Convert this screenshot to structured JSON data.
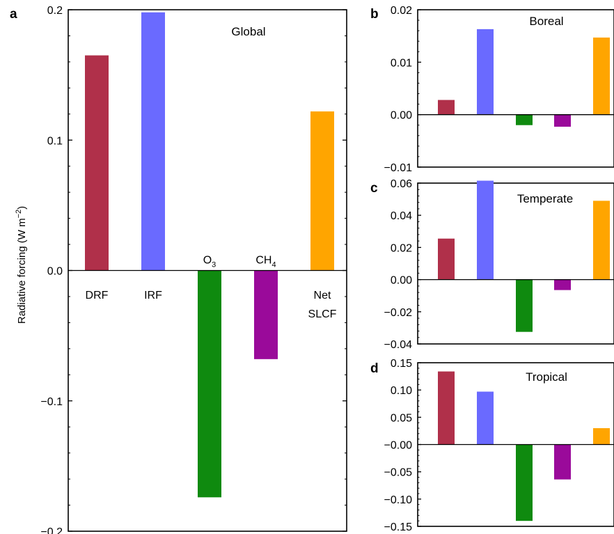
{
  "chart_data": [
    {
      "panel": "a",
      "type": "bar",
      "title": "Global",
      "ylabel": "Radiative forcing (W m−2)",
      "categories": [
        "DRF",
        "IRF",
        "O3",
        "CH4",
        "Net SLCF"
      ],
      "category_labels": [
        {
          "main": "DRF",
          "sub": ""
        },
        {
          "main": "IRF",
          "sub": ""
        },
        {
          "main": "O",
          "sub": "3"
        },
        {
          "main": "CH",
          "sub": "4"
        },
        {
          "main": "Net",
          "sub": "SLCF"
        }
      ],
      "values": [
        0.165,
        0.198,
        -0.174,
        -0.068,
        0.122
      ],
      "colors": [
        "#b0304a",
        "#6a6aff",
        "#0f8a0f",
        "#9a0a9a",
        "#ffa500"
      ],
      "ylim": [
        -0.2,
        0.2
      ],
      "yticks": [
        -0.2,
        -0.1,
        0.0,
        0.1,
        0.2
      ],
      "ytick_labels": [
        "−0.2",
        "−0.1",
        "0.0",
        "0.1",
        "0.2"
      ]
    },
    {
      "panel": "b",
      "type": "bar",
      "title": "Boreal",
      "categories": [
        "DRF",
        "IRF",
        "O3",
        "CH4",
        "Net SLCF"
      ],
      "values": [
        0.0028,
        0.0163,
        -0.002,
        -0.0023,
        0.0147
      ],
      "colors": [
        "#b0304a",
        "#6a6aff",
        "#0f8a0f",
        "#9a0a9a",
        "#ffa500"
      ],
      "ylim": [
        -0.01,
        0.02
      ],
      "yticks": [
        -0.01,
        0.0,
        0.01,
        0.02
      ],
      "ytick_labels": [
        "−0.01",
        "0.00",
        "0.01",
        "0.02"
      ]
    },
    {
      "panel": "c",
      "type": "bar",
      "title": "Temperate",
      "categories": [
        "DRF",
        "IRF",
        "O3",
        "CH4",
        "Net SLCF"
      ],
      "values": [
        0.0255,
        0.0615,
        -0.0325,
        -0.0065,
        0.049
      ],
      "colors": [
        "#b0304a",
        "#6a6aff",
        "#0f8a0f",
        "#9a0a9a",
        "#ffa500"
      ],
      "ylim": [
        -0.04,
        0.06
      ],
      "yticks": [
        -0.04,
        -0.02,
        0.0,
        0.02,
        0.04,
        0.06
      ],
      "ytick_labels": [
        "−0.04",
        "−0.02",
        "0.00",
        "0.02",
        "0.04",
        "0.06"
      ]
    },
    {
      "panel": "d",
      "type": "bar",
      "title": "Tropical",
      "categories": [
        "DRF",
        "IRF",
        "O3",
        "CH4",
        "Net SLCF"
      ],
      "values": [
        0.134,
        0.097,
        -0.14,
        -0.064,
        0.03
      ],
      "colors": [
        "#b0304a",
        "#6a6aff",
        "#0f8a0f",
        "#9a0a9a",
        "#ffa500"
      ],
      "ylim": [
        -0.15,
        0.15
      ],
      "yticks": [
        -0.15,
        -0.1,
        -0.05,
        0.0,
        0.05,
        0.1,
        0.15
      ],
      "ytick_labels": [
        "−0.15",
        "−0.10",
        "−0.05",
        "−0.00",
        "0.05",
        "0.10",
        "0.15"
      ]
    }
  ]
}
